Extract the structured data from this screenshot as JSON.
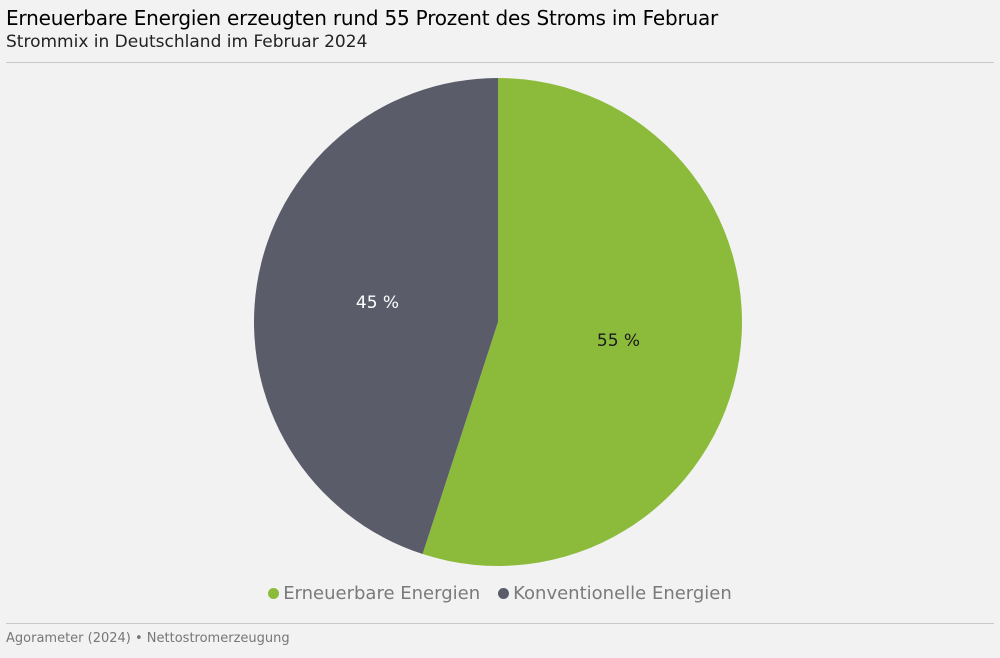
{
  "header": {
    "title": "Erneuerbare Energien erzeugten rund 55 Prozent des Stroms im Februar",
    "subtitle": "Strommix in Deutschland im Februar 2024"
  },
  "chart_data": {
    "type": "pie",
    "title": "Erneuerbare Energien erzeugten rund 55 Prozent des Stroms im Februar",
    "subtitle": "Strommix in Deutschland im Februar 2024",
    "slices": [
      {
        "label": "Erneuerbare Energien",
        "value": 55,
        "data_label": "55 %",
        "color": "#8cbb3c",
        "label_color": "#1a1a1a"
      },
      {
        "label": "Konventionelle Energien",
        "value": 45,
        "data_label": "45 %",
        "color": "#5a5c6a",
        "label_color": "#ffffff"
      }
    ],
    "legend_position": "bottom"
  },
  "footer": {
    "source": "Agorameter (2024) • Nettostromerzeugung"
  }
}
